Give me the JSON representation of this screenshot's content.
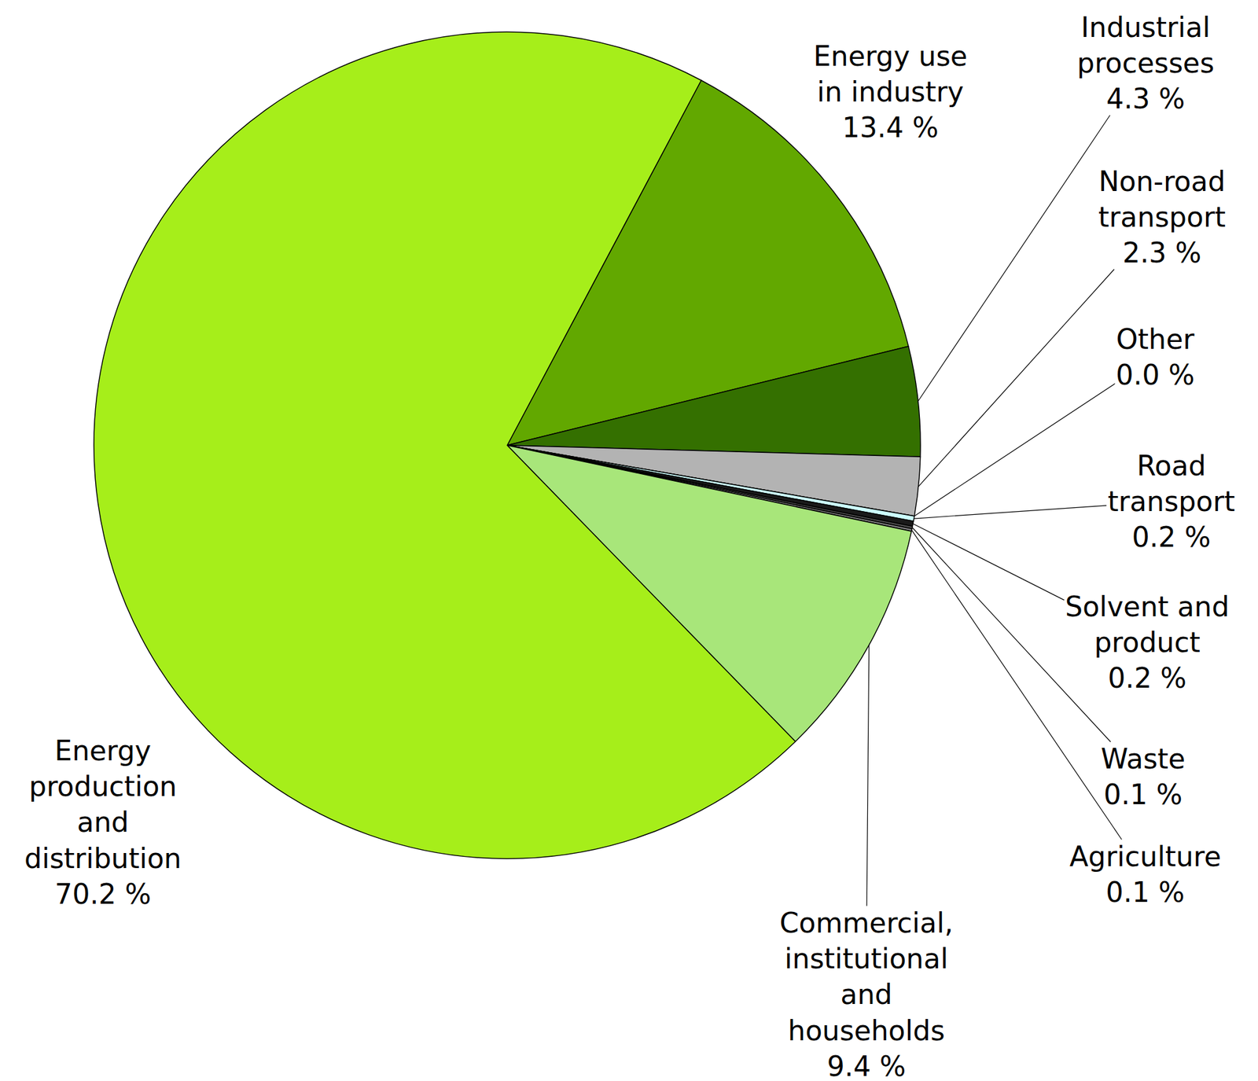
{
  "chart_data": {
    "type": "pie",
    "categories": [
      "Energy use in industry",
      "Industrial processes",
      "Non-road transport",
      "Other",
      "Road transport",
      "Solvent and product",
      "Waste",
      "Agriculture",
      "Commercial, institutional and households",
      "Energy production and distribution"
    ],
    "values": [
      13.4,
      4.3,
      2.3,
      0.0,
      0.2,
      0.2,
      0.1,
      0.1,
      9.4,
      70.2
    ],
    "value_labels": [
      "13.4 %",
      "4.3 %",
      "2.3 %",
      "0.0 %",
      "0.2 %",
      "0.2 %",
      "0.1 %",
      "0.1 %",
      "9.4 %",
      "70.2 %"
    ],
    "colors": [
      "#62a800",
      "#347000",
      "#b3b3b3",
      "#ffffff",
      "#ccffff",
      "#1a1a1a",
      "#4d4d4d",
      "#808080",
      "#a8e67a",
      "#a6ee1a"
    ],
    "data_labels": true
  }
}
